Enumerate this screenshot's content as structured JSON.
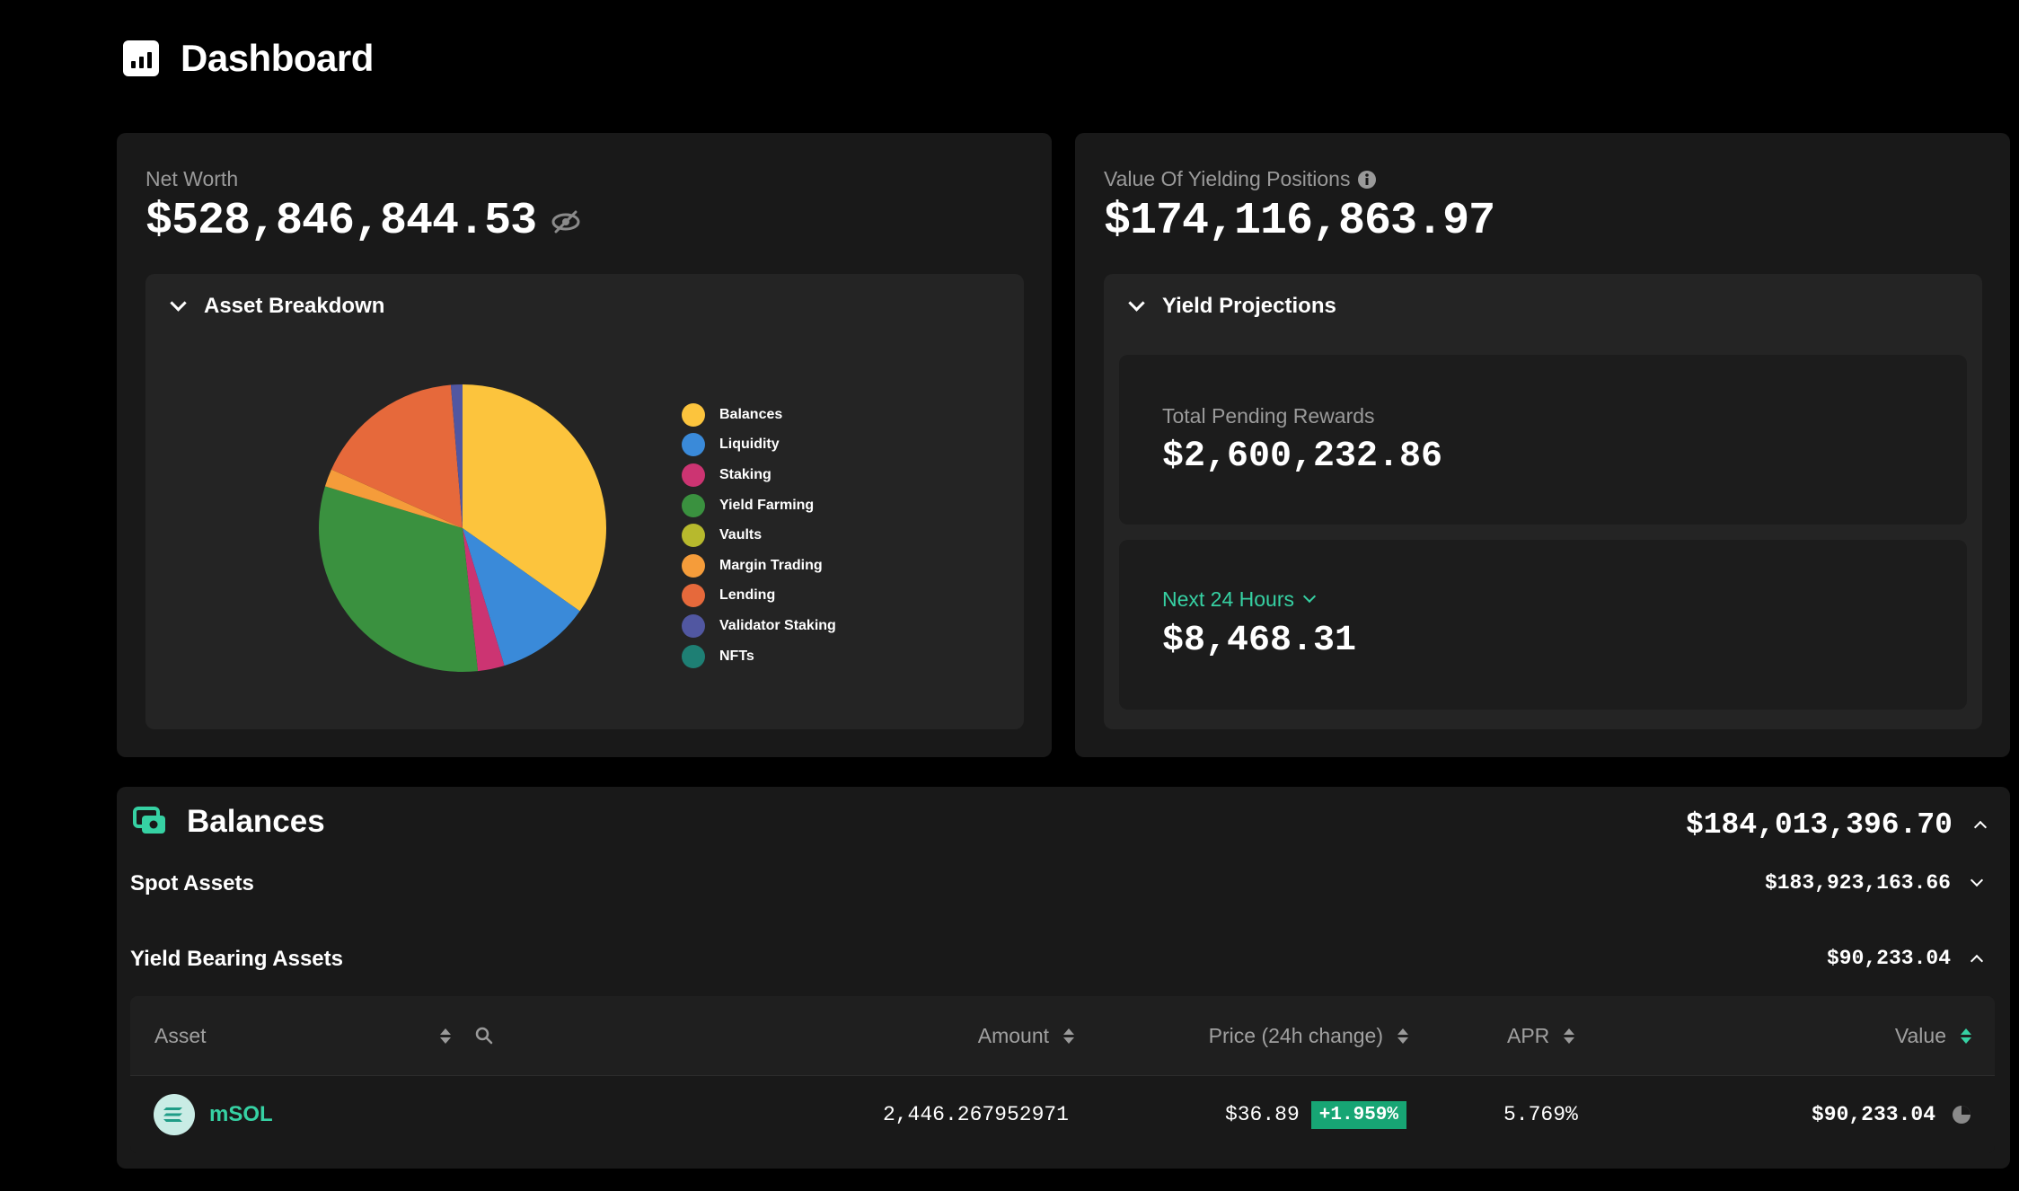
{
  "header": {
    "title": "Dashboard"
  },
  "net_worth": {
    "label": "Net Worth",
    "value": "$528,846,844.53"
  },
  "asset_breakdown": {
    "title": "Asset Breakdown"
  },
  "yielding": {
    "label": "Value Of Yielding Positions",
    "value": "$174,116,863.97",
    "projections_title": "Yield Projections",
    "pending_label": "Total Pending Rewards",
    "pending_value": "$2,600,232.86",
    "period_label": "Next 24 Hours",
    "period_value": "$8,468.31"
  },
  "chart_data": {
    "type": "pie",
    "categories": [
      "Balances",
      "Liquidity",
      "Staking",
      "Yield Farming",
      "Vaults",
      "Margin Trading",
      "Lending",
      "Validator Staking",
      "NFTs"
    ],
    "values": [
      34.8,
      10.5,
      3.0,
      31.4,
      0,
      2.0,
      17.0,
      1.3,
      0
    ],
    "colors": [
      "#fcc43d",
      "#3a8ad9",
      "#cc3472",
      "#3a913f",
      "#b7b92d",
      "#f59c3a",
      "#e6693b",
      "#5157a1",
      "#1e7f74"
    ],
    "legend_position": "right"
  },
  "balances": {
    "title": "Balances",
    "total": "$184,013,396.70",
    "spot_label": "Spot Assets",
    "spot_value": "$183,923,163.66",
    "yield_label": "Yield Bearing Assets",
    "yield_value": "$90,233.04"
  },
  "table": {
    "columns": {
      "asset": "Asset",
      "amount": "Amount",
      "price": "Price (24h change)",
      "apr": "APR",
      "value": "Value"
    },
    "rows": [
      {
        "asset": "mSOL",
        "amount": "2,446.267952971",
        "price": "$36.89",
        "change": "+1.959%",
        "apr": "5.769%",
        "value": "$90,233.04"
      }
    ]
  }
}
